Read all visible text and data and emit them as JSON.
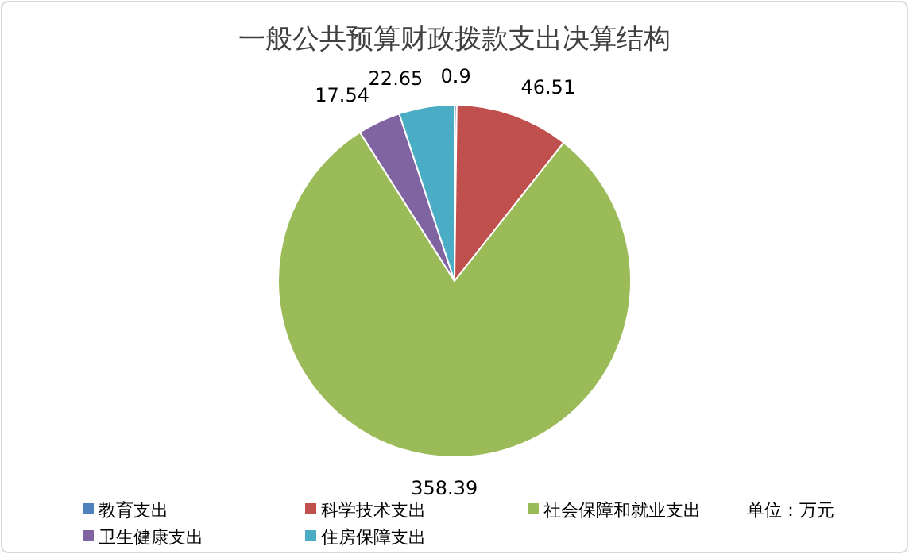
{
  "chart_data": {
    "type": "pie",
    "title": "一般公共预算财政拨款支出决算结构",
    "categories": [
      "教育支出",
      "科学技术支出",
      "社会保障和就业支出",
      "卫生健康支出",
      "住房保障支出"
    ],
    "values": [
      0.9,
      46.51,
      358.39,
      17.54,
      22.65
    ],
    "colors": [
      "#4f81bd",
      "#c0504d",
      "#9bbb59",
      "#8064a2",
      "#4bacc6"
    ],
    "data_labels": true,
    "legend": "bottom",
    "annotations": [
      "单位：万元"
    ]
  }
}
